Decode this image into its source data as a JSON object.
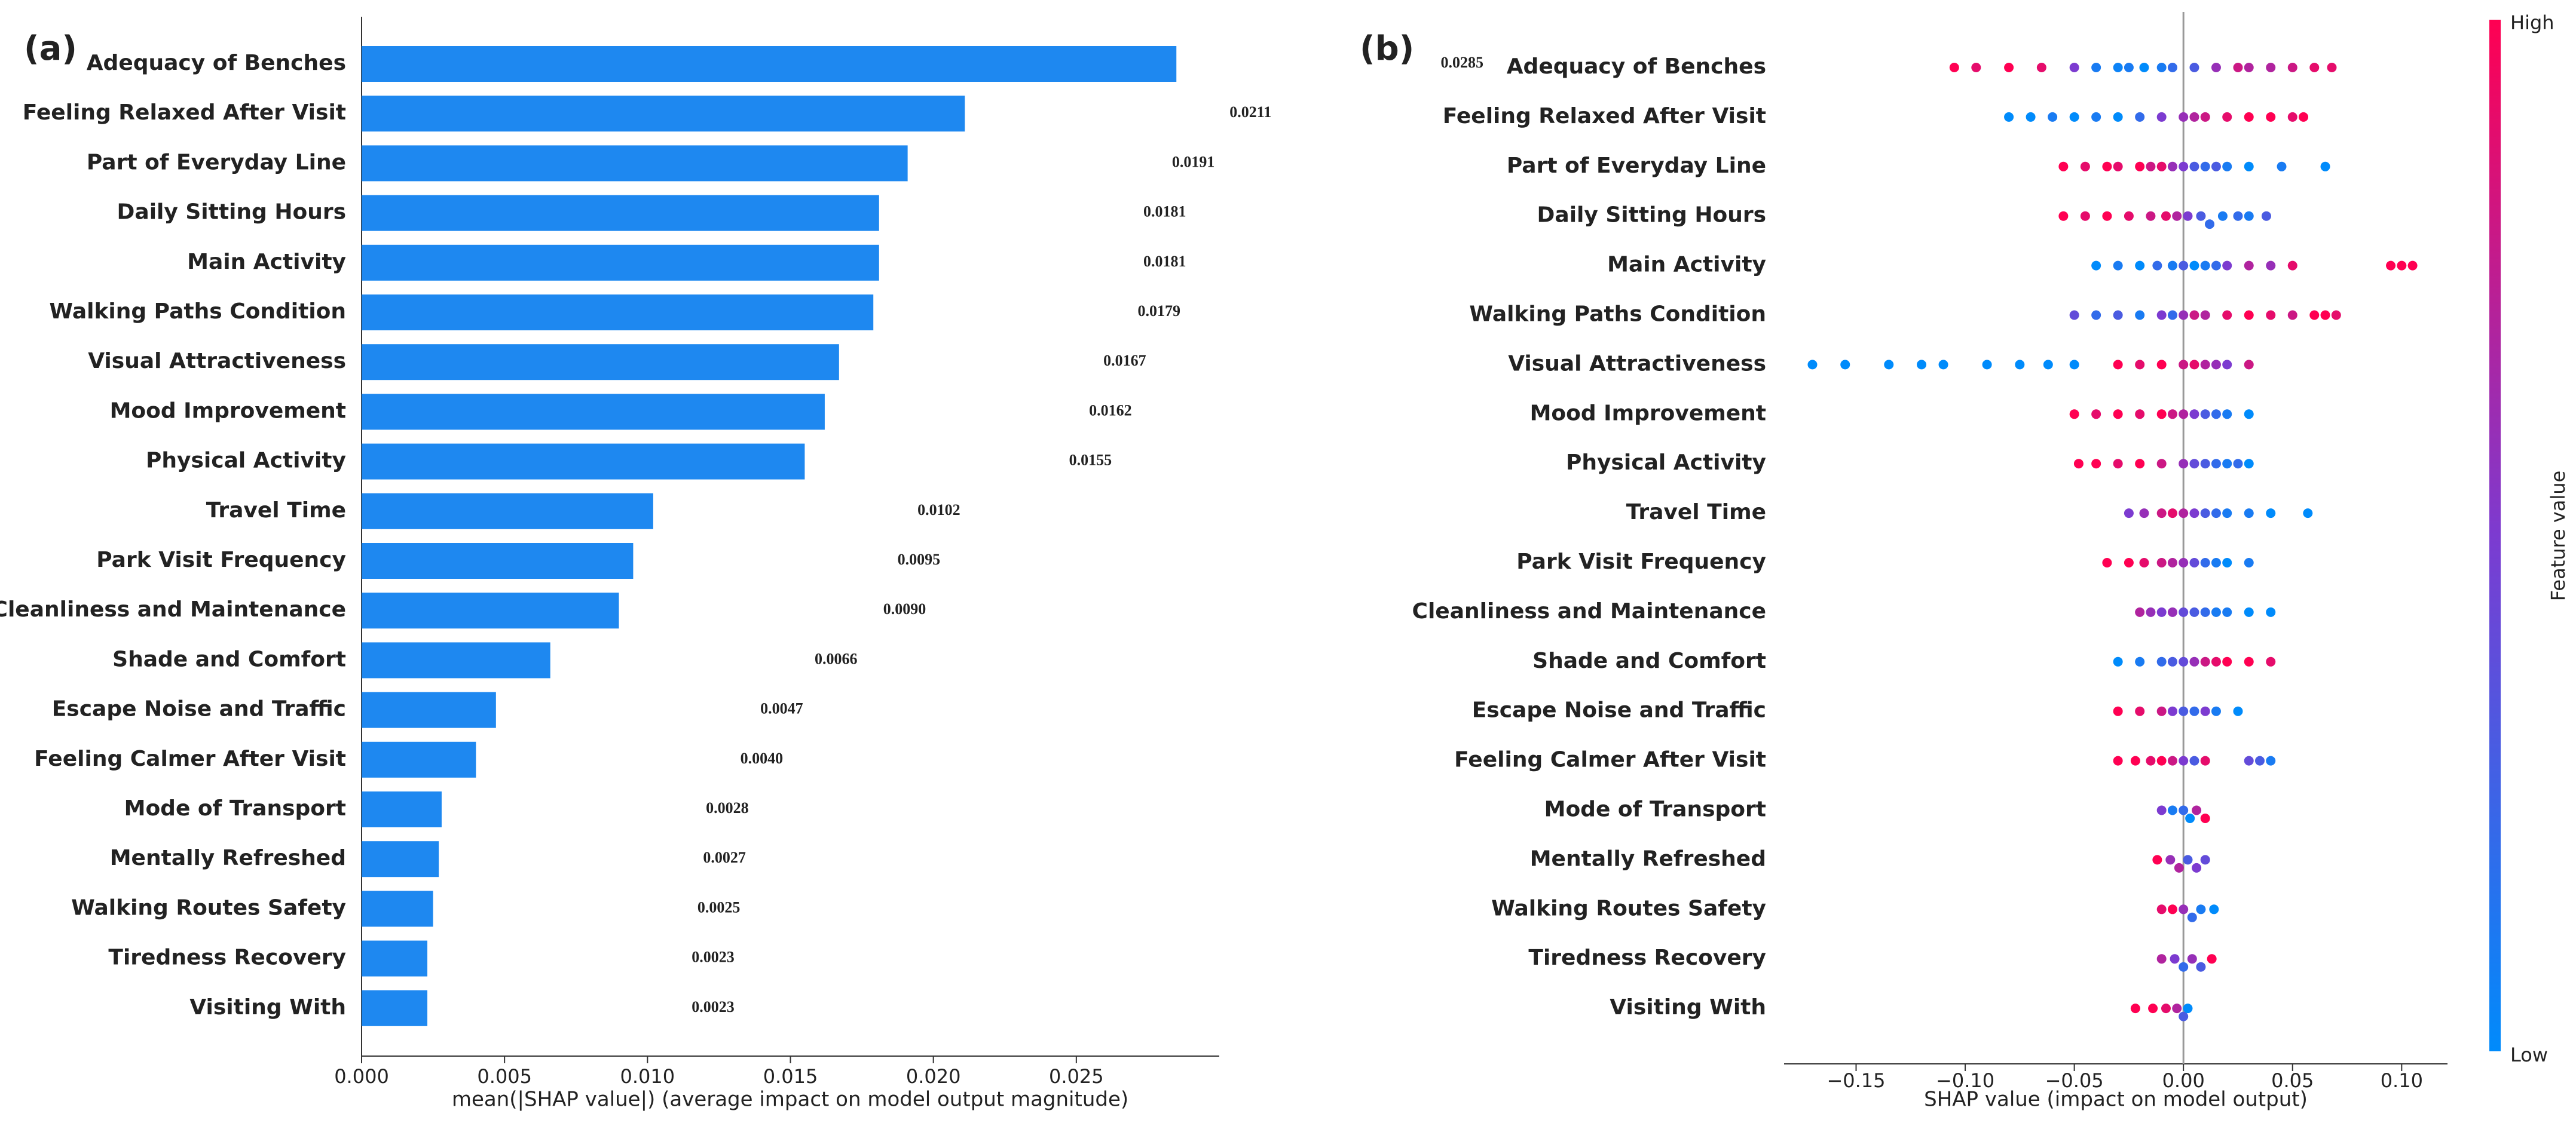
{
  "chart_data": [
    {
      "type": "bar",
      "panel_label": "(a)",
      "xlabel": "mean(|SHAP value|) (average impact on model output magnitude)",
      "categories": [
        "Adequacy of Benches",
        "Feeling Relaxed After Visit",
        "Part of Everyday Line",
        "Daily Sitting Hours",
        "Main Activity",
        "Walking Paths Condition",
        "Visual Attractiveness",
        "Mood Improvement",
        "Physical Activity",
        "Travel Time",
        "Park Visit Frequency",
        "Cleanliness and Maintenance",
        "Shade and Comfort",
        "Escape Noise and Traffic",
        "Feeling Calmer After Visit",
        "Mode of Transport",
        "Mentally Refreshed",
        "Walking Routes Safety",
        "Tiredness Recovery",
        "Visiting With"
      ],
      "values": [
        0.0285,
        0.0211,
        0.0191,
        0.0181,
        0.0181,
        0.0179,
        0.0167,
        0.0162,
        0.0155,
        0.0102,
        0.0095,
        0.009,
        0.0066,
        0.0047,
        0.004,
        0.0028,
        0.0027,
        0.0025,
        0.0023,
        0.0023
      ],
      "value_labels": [
        "0.0285",
        "0.0211",
        "0.0191",
        "0.0181",
        "0.0181",
        "0.0179",
        "0.0167",
        "0.0162",
        "0.0155",
        "0.0102",
        "0.0095",
        "0.0090",
        "0.0066",
        "0.0047",
        "0.0040",
        "0.0028",
        "0.0027",
        "0.0025",
        "0.0023",
        "0.0023"
      ],
      "color": "#1e88f0",
      "xlim": [
        0,
        0.03
      ],
      "xticks": [
        {
          "value": 0,
          "label": "0.000"
        },
        {
          "value": 0.005,
          "label": "0.005"
        },
        {
          "value": 0.01,
          "label": "0.010"
        },
        {
          "value": 0.015,
          "label": "0.015"
        },
        {
          "value": 0.02,
          "label": "0.020"
        },
        {
          "value": 0.025,
          "label": "0.025"
        }
      ]
    },
    {
      "type": "beeswarm",
      "panel_label": "(b)",
      "xlabel": "SHAP value (impact on model output)",
      "categories": [
        "Adequacy of Benches",
        "Feeling Relaxed After Visit",
        "Part of Everyday Line",
        "Daily Sitting Hours",
        "Main Activity",
        "Walking Paths Condition",
        "Visual Attractiveness",
        "Mood Improvement",
        "Physical Activity",
        "Travel Time",
        "Park Visit Frequency",
        "Cleanliness and Maintenance",
        "Shade and Comfort",
        "Escape Noise and Traffic",
        "Feeling Calmer After Visit",
        "Mode of Transport",
        "Mentally Refreshed",
        "Walking Routes Safety",
        "Tiredness Recovery",
        "Visiting With"
      ],
      "points": [
        {
          "values": [
            -0.105,
            -0.095,
            -0.08,
            -0.065,
            -0.05,
            -0.04,
            -0.03,
            -0.025,
            -0.018,
            -0.01,
            -0.005,
            0.005,
            0.015,
            0.025,
            0.03,
            0.04,
            0.05,
            0.06,
            0.068
          ],
          "feature_values": [
            1,
            0.9,
            1,
            0.9,
            0.5,
            0.1,
            0.05,
            0.1,
            0,
            0.1,
            0.2,
            0.3,
            0.6,
            0.8,
            0.7,
            0.7,
            0.8,
            0.9,
            0.9
          ]
        },
        {
          "values": [
            -0.08,
            -0.07,
            -0.06,
            -0.05,
            -0.04,
            -0.03,
            -0.02,
            -0.01,
            0,
            0.005,
            0.01,
            0.02,
            0.03,
            0.04,
            0.05,
            0.055
          ],
          "feature_values": [
            0,
            0,
            0.1,
            0,
            0.1,
            0,
            0.2,
            0.5,
            0.6,
            0.7,
            0.8,
            0.9,
            1,
            1,
            0.9,
            1
          ]
        },
        {
          "values": [
            -0.055,
            -0.045,
            -0.035,
            -0.03,
            -0.02,
            -0.015,
            -0.01,
            -0.005,
            0,
            0.005,
            0.01,
            0.015,
            0.02,
            0.03,
            0.045,
            0.065
          ],
          "feature_values": [
            1,
            0.9,
            1,
            0.9,
            1,
            0.8,
            0.9,
            0.6,
            0.5,
            0.3,
            0.2,
            0.3,
            0.1,
            0,
            0.1,
            0
          ]
        },
        {
          "values": [
            -0.055,
            -0.045,
            -0.035,
            -0.025,
            -0.015,
            -0.008,
            -0.003,
            0.002,
            0.008,
            0.012,
            0.018,
            0.025,
            0.03,
            0.038
          ],
          "feature_values": [
            1,
            0.9,
            1,
            0.9,
            0.8,
            0.9,
            0.7,
            0.5,
            0.3,
            0.2,
            0.1,
            0.2,
            0.1,
            0.3
          ]
        },
        {
          "values": [
            -0.04,
            -0.03,
            -0.02,
            -0.012,
            -0.005,
            0,
            0.005,
            0.01,
            0.015,
            0.02,
            0.03,
            0.04,
            0.05,
            0.095,
            0.1,
            0.105
          ],
          "feature_values": [
            0,
            0.1,
            0,
            0.2,
            0.1,
            0.3,
            0,
            0.1,
            0.2,
            0.5,
            0.7,
            0.6,
            0.9,
            1,
            1,
            1
          ]
        },
        {
          "values": [
            -0.05,
            -0.04,
            -0.03,
            -0.02,
            -0.01,
            -0.005,
            0,
            0.005,
            0.01,
            0.02,
            0.03,
            0.04,
            0.05,
            0.06,
            0.065,
            0.07
          ],
          "feature_values": [
            0.4,
            0.2,
            0.3,
            0.1,
            0.5,
            0.2,
            0.6,
            0.8,
            0.7,
            0.9,
            1,
            0.9,
            0.8,
            1,
            1,
            0.9
          ]
        },
        {
          "values": [
            -0.17,
            -0.155,
            -0.135,
            -0.12,
            -0.11,
            -0.09,
            -0.075,
            -0.062,
            -0.05,
            -0.03,
            -0.02,
            -0.01,
            0,
            0.005,
            0.01,
            0.015,
            0.02,
            0.03
          ],
          "feature_values": [
            0,
            0,
            0,
            0,
            0,
            0,
            0,
            0,
            0,
            1,
            0.9,
            1,
            0.8,
            0.9,
            0.7,
            0.6,
            0.5,
            0.8
          ]
        },
        {
          "values": [
            -0.05,
            -0.04,
            -0.03,
            -0.02,
            -0.01,
            -0.005,
            0,
            0.005,
            0.01,
            0.015,
            0.02,
            0.03
          ],
          "feature_values": [
            1,
            0.9,
            1,
            0.9,
            1,
            0.8,
            0.7,
            0.5,
            0.3,
            0.2,
            0.1,
            0
          ]
        },
        {
          "values": [
            -0.048,
            -0.04,
            -0.03,
            -0.02,
            -0.01,
            0,
            0.005,
            0.01,
            0.015,
            0.02,
            0.025,
            0.03
          ],
          "feature_values": [
            1,
            1,
            0.9,
            1,
            0.8,
            0.6,
            0.4,
            0.3,
            0.2,
            0.1,
            0.2,
            0
          ]
        },
        {
          "values": [
            -0.025,
            -0.018,
            -0.01,
            -0.005,
            0,
            0.005,
            0.01,
            0.015,
            0.02,
            0.03,
            0.04,
            0.057
          ],
          "feature_values": [
            0.5,
            0.6,
            0.8,
            0.9,
            0.7,
            0.5,
            0.3,
            0.2,
            0.1,
            0.1,
            0,
            0
          ]
        },
        {
          "values": [
            -0.035,
            -0.025,
            -0.018,
            -0.01,
            -0.005,
            0,
            0.005,
            0.01,
            0.015,
            0.02,
            0.03
          ],
          "feature_values": [
            1,
            1,
            0.9,
            0.8,
            0.7,
            0.6,
            0.4,
            0.2,
            0.1,
            0,
            0.1
          ]
        },
        {
          "values": [
            -0.02,
            -0.015,
            -0.01,
            -0.005,
            0,
            0.005,
            0.01,
            0.015,
            0.02,
            0.03,
            0.04
          ],
          "feature_values": [
            0.7,
            0.6,
            0.5,
            0.6,
            0.4,
            0.3,
            0.2,
            0.1,
            0.1,
            0,
            0
          ]
        },
        {
          "values": [
            -0.03,
            -0.02,
            -0.01,
            -0.005,
            0,
            0.005,
            0.01,
            0.015,
            0.02,
            0.03,
            0.04
          ],
          "feature_values": [
            0,
            0.1,
            0.2,
            0.3,
            0.4,
            0.6,
            0.8,
            0.9,
            1,
            1,
            0.9
          ]
        },
        {
          "values": [
            -0.03,
            -0.02,
            -0.01,
            -0.005,
            0,
            0.005,
            0.01,
            0.015,
            0.025
          ],
          "feature_values": [
            1,
            0.9,
            0.8,
            0.5,
            0.3,
            0.2,
            0.5,
            0.1,
            0
          ]
        },
        {
          "values": [
            -0.03,
            -0.022,
            -0.015,
            -0.01,
            -0.005,
            0,
            0.005,
            0.01,
            0.03,
            0.035,
            0.04
          ],
          "feature_values": [
            1,
            1,
            0.9,
            1,
            0.8,
            0.5,
            0.3,
            0.9,
            0.4,
            0.3,
            0.1
          ]
        },
        {
          "values": [
            -0.01,
            -0.005,
            0,
            0.003,
            0.006,
            0.01
          ],
          "feature_values": [
            0.5,
            0.1,
            0.2,
            0,
            0.7,
            1
          ]
        },
        {
          "values": [
            -0.012,
            -0.006,
            -0.002,
            0.002,
            0.006,
            0.01
          ],
          "feature_values": [
            1,
            0.6,
            0.7,
            0.3,
            0.5,
            0.4
          ]
        },
        {
          "values": [
            -0.01,
            -0.005,
            0,
            0.004,
            0.008,
            0.014
          ],
          "feature_values": [
            0.9,
            1,
            0.6,
            0.2,
            0.1,
            0
          ]
        },
        {
          "values": [
            -0.01,
            -0.004,
            0,
            0.004,
            0.008,
            0.013
          ],
          "feature_values": [
            0.7,
            0.5,
            0.2,
            0.6,
            0.3,
            1
          ]
        },
        {
          "values": [
            -0.022,
            -0.014,
            -0.008,
            -0.003,
            0,
            0.002
          ],
          "feature_values": [
            1,
            1,
            0.9,
            0.7,
            0.3,
            0
          ]
        }
      ],
      "colormap": [
        "#008bfb",
        "#7c3bd0",
        "#ff0052"
      ],
      "colorbar_high": "High",
      "colorbar_low": "Low",
      "colorbar_title": "Feature value",
      "zero_line": true,
      "xlim": [
        -0.183,
        0.121
      ],
      "xticks": [
        {
          "value": -0.15,
          "label": "−0.15"
        },
        {
          "value": -0.1,
          "label": "−0.10"
        },
        {
          "value": -0.05,
          "label": "−0.05"
        },
        {
          "value": 0,
          "label": "0.00"
        },
        {
          "value": 0.05,
          "label": "0.05"
        },
        {
          "value": 0.1,
          "label": "0.10"
        }
      ]
    }
  ]
}
